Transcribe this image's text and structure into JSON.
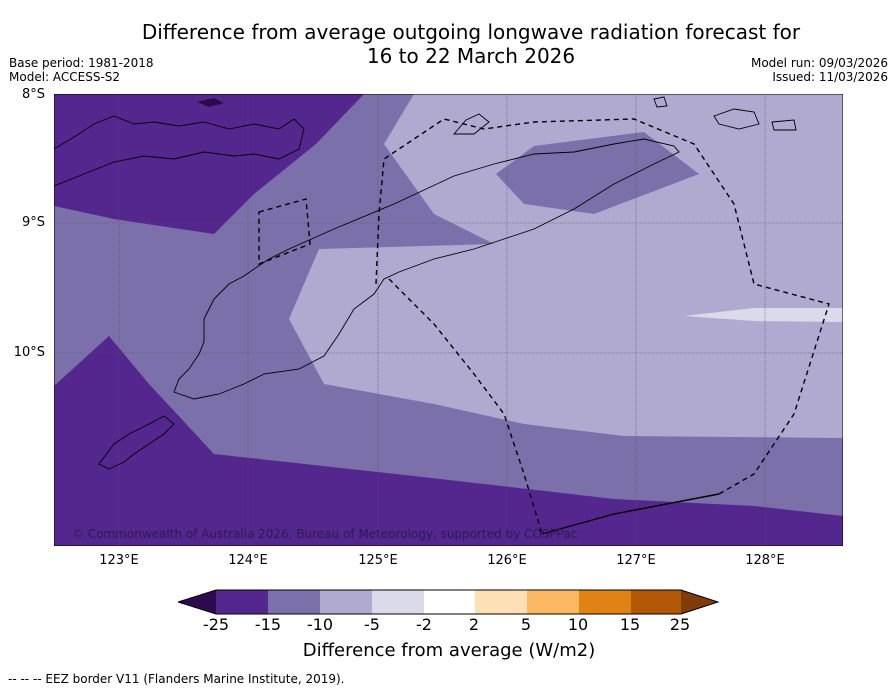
{
  "title_line1": "Difference from average outgoing longwave radiation forecast for",
  "title_line2": "16 to 22 March 2026",
  "base_period": "Base period: 1981-2018",
  "model": "Model: ACCESS-S2",
  "model_run": "Model run: 09/03/2026",
  "issued": "Issued: 11/03/2026",
  "lat_labels": [
    "8°S",
    "9°S",
    "10°S"
  ],
  "lon_labels": [
    "123°E",
    "124°E",
    "125°E",
    "126°E",
    "127°E",
    "128°E"
  ],
  "copyright": "© Commonwealth of Australia 2026, Bureau of Meteorology, supported by COSPPac",
  "colorbar": {
    "ticks": [
      "-25",
      "-15",
      "-10",
      "-5",
      "-2",
      "2",
      "5",
      "10",
      "15",
      "25"
    ],
    "colors": [
      "#2d0a4e",
      "#54278f",
      "#7c70ab",
      "#b0aad1",
      "#dadaeb",
      "#ffffff",
      "#fee0b6",
      "#fdb863",
      "#e08214",
      "#b35806",
      "#7f3b08"
    ],
    "label": "Difference from average (W/m2)"
  },
  "footnote": "-- -- -- EEZ border V11 (Flanders Marine Institute, 2019)."
}
